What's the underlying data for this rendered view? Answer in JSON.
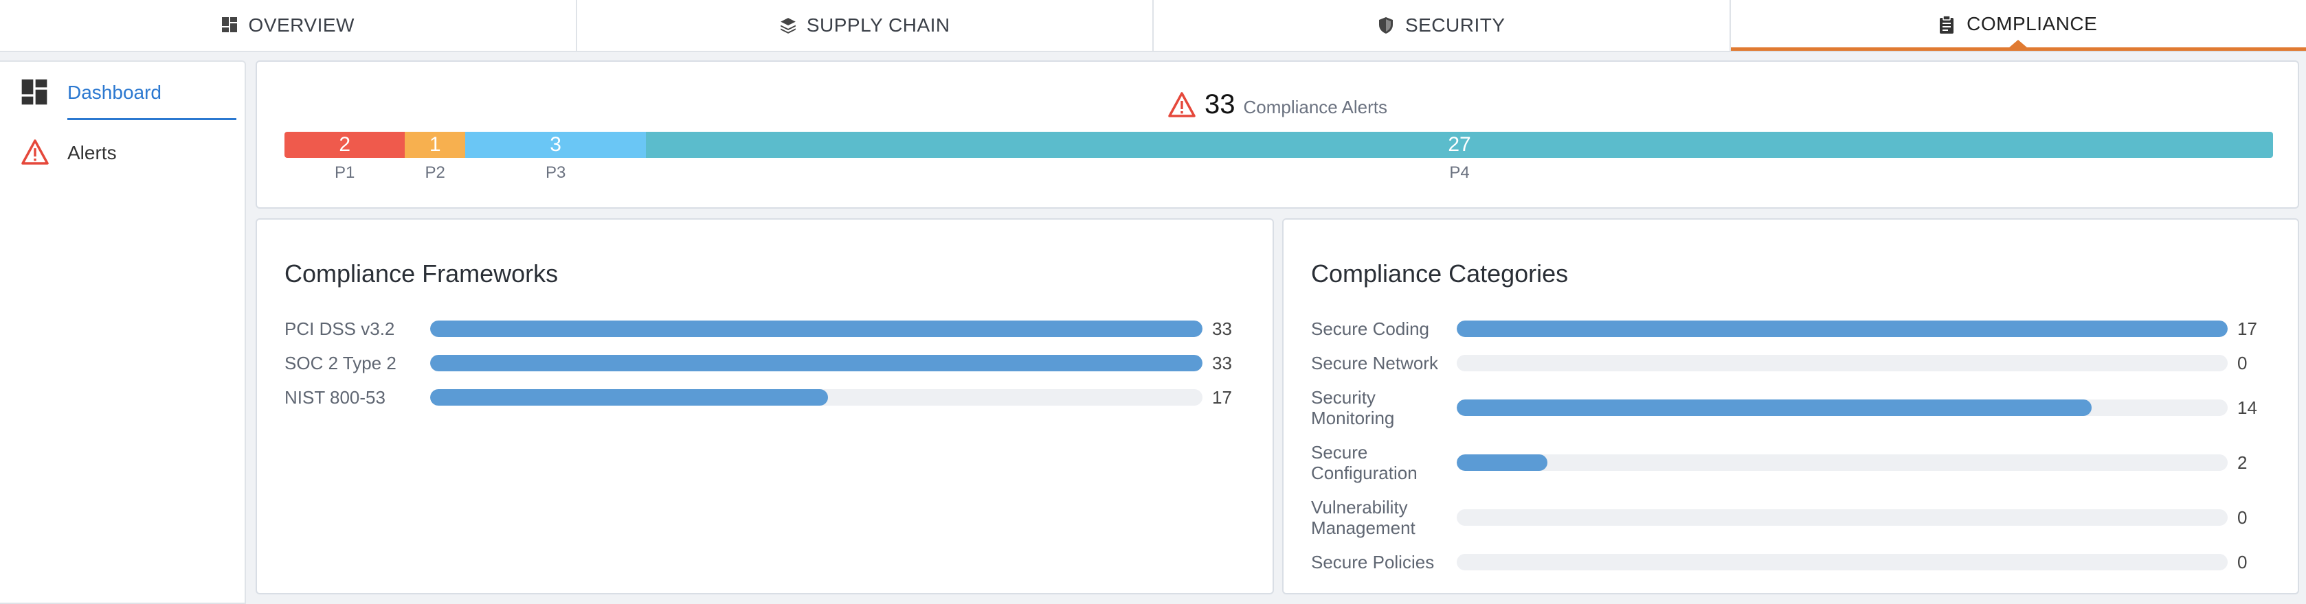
{
  "tabs": [
    {
      "id": "overview",
      "label": "OVERVIEW",
      "icon": "dashboard-grid-icon",
      "active": false
    },
    {
      "id": "supply",
      "label": "SUPPLY CHAIN",
      "icon": "layers-stack-icon",
      "active": false
    },
    {
      "id": "security",
      "label": "SECURITY",
      "icon": "shield-icon",
      "active": false
    },
    {
      "id": "compliance",
      "label": "COMPLIANCE",
      "icon": "clipboard-icon",
      "active": true
    }
  ],
  "sidebar": {
    "items": [
      {
        "label": "Dashboard",
        "icon": "dashboard-grid-icon",
        "active": true
      },
      {
        "label": "Alerts",
        "icon": "warning-triangle-icon",
        "active": false
      }
    ]
  },
  "alerts_summary": {
    "count": "33",
    "label": "Compliance Alerts",
    "icon": "warning-triangle-icon",
    "priorities": [
      {
        "name": "P1",
        "value": 2,
        "color": "#ef5a4c"
      },
      {
        "name": "P2",
        "value": 1,
        "color": "#f7b04f"
      },
      {
        "name": "P3",
        "value": 3,
        "color": "#6ac6f5"
      },
      {
        "name": "P4",
        "value": 27,
        "color": "#5bbccc"
      }
    ]
  },
  "frameworks": {
    "title": "Compliance Frameworks",
    "max": 33,
    "rows": [
      {
        "name": "PCI DSS v3.2",
        "value": 33
      },
      {
        "name": "SOC 2 Type 2",
        "value": 33
      },
      {
        "name": "NIST 800-53",
        "value": 17
      }
    ]
  },
  "categories": {
    "title": "Compliance Categories",
    "max": 17,
    "rows": [
      {
        "name": "Secure Coding",
        "value": 17
      },
      {
        "name": "Secure Network",
        "value": 0
      },
      {
        "name": "Security Monitoring",
        "value": 14
      },
      {
        "name": "Secure Configuration",
        "value": 2
      },
      {
        "name": "Vulnerability Management",
        "value": 0
      },
      {
        "name": "Secure Policies",
        "value": 0
      }
    ]
  },
  "colors": {
    "accent": "#e07a31",
    "link": "#2b78d0",
    "bar_fill": "#5b9bd5",
    "alert_red": "#e5483b"
  }
}
